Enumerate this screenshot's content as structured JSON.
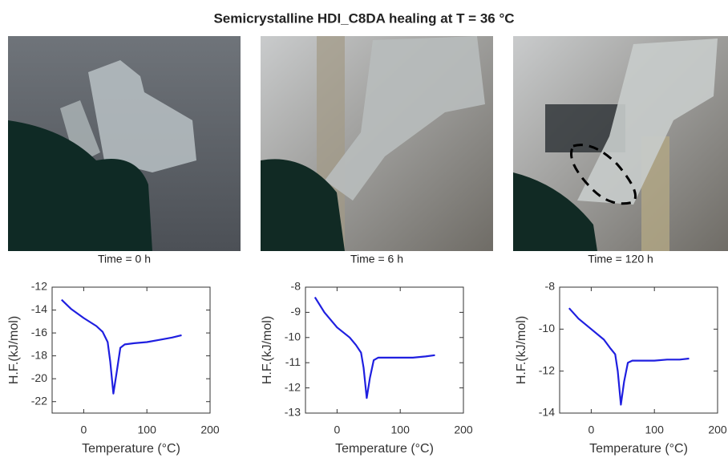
{
  "title": "Semicrystalline HDI_C8DA healing at T = 36 °C",
  "photos": [
    {
      "caption": "Time = 0 h"
    },
    {
      "caption": "Time = 6 h"
    },
    {
      "caption": "Time = 120 h"
    }
  ],
  "chart_data": [
    {
      "type": "line",
      "xlabel": "Temperature (°C)",
      "ylabel": "H.F.(kJ/mol)",
      "xlim": [
        -50,
        200
      ],
      "xticks": [
        0,
        100,
        200
      ],
      "ylim": [
        -23,
        -12
      ],
      "yticks": [
        -22,
        -20,
        -18,
        -16,
        -14,
        -12
      ],
      "x": [
        -35,
        -20,
        0,
        20,
        30,
        38,
        42,
        47,
        52,
        58,
        65,
        80,
        100,
        120,
        140,
        155
      ],
      "series": [
        {
          "color": "#1f1fe0",
          "values": [
            -13.1,
            -13.9,
            -14.7,
            -15.4,
            -15.9,
            -16.8,
            -18.5,
            -21.3,
            -19.5,
            -17.3,
            -17.0,
            -16.9,
            -16.8,
            -16.6,
            -16.4,
            -16.2
          ]
        }
      ]
    },
    {
      "type": "line",
      "xlabel": "Temperature (°C)",
      "ylabel": "H.F.(kJ/mol)",
      "xlim": [
        -50,
        200
      ],
      "xticks": [
        0,
        100,
        200
      ],
      "ylim": [
        -13,
        -8
      ],
      "yticks": [
        -13,
        -12,
        -11,
        -10,
        -9,
        -8
      ],
      "x": [
        -35,
        -20,
        0,
        20,
        30,
        38,
        42,
        47,
        52,
        58,
        65,
        80,
        100,
        120,
        140,
        155
      ],
      "series": [
        {
          "color": "#1f1fe0",
          "values": [
            -8.4,
            -9.0,
            -9.6,
            -10.0,
            -10.3,
            -10.6,
            -11.2,
            -12.4,
            -11.6,
            -10.9,
            -10.8,
            -10.8,
            -10.8,
            -10.8,
            -10.75,
            -10.7
          ]
        }
      ]
    },
    {
      "type": "line",
      "xlabel": "Temperature (°C)",
      "ylabel": "H.F.(kJ/mol)",
      "xlim": [
        -50,
        200
      ],
      "xticks": [
        0,
        100,
        200
      ],
      "ylim": [
        -14,
        -8
      ],
      "yticks": [
        -14,
        -12,
        -10,
        -8
      ],
      "x": [
        -35,
        -20,
        0,
        20,
        30,
        38,
        42,
        47,
        52,
        58,
        65,
        80,
        100,
        120,
        140,
        155
      ],
      "series": [
        {
          "color": "#1f1fe0",
          "values": [
            -9.0,
            -9.5,
            -10.0,
            -10.5,
            -10.9,
            -11.2,
            -12.0,
            -13.6,
            -12.5,
            -11.6,
            -11.5,
            -11.5,
            -11.5,
            -11.45,
            -11.45,
            -11.4
          ]
        }
      ]
    }
  ]
}
